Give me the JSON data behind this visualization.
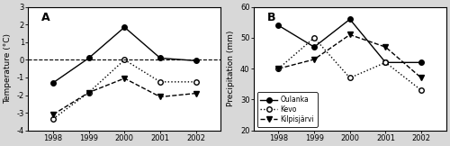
{
  "years": [
    1998,
    1999,
    2000,
    2001,
    2002
  ],
  "temp_oulanka": [
    -1.3,
    0.1,
    1.85,
    0.1,
    -0.05
  ],
  "temp_kevo": [
    -3.35,
    -1.85,
    0.0,
    -1.25,
    -1.25
  ],
  "temp_kilpisjarvi": [
    -3.1,
    -1.85,
    -1.05,
    -2.1,
    -1.9
  ],
  "precip_oulanka": [
    54,
    47,
    56,
    42,
    42
  ],
  "precip_kevo": [
    40,
    50,
    37,
    42,
    33
  ],
  "precip_kilpisjarvi": [
    40,
    43,
    51,
    47,
    37
  ],
  "temp_ylim": [
    -4,
    3
  ],
  "temp_yticks": [
    -4,
    -3,
    -2,
    -1,
    0,
    1,
    2,
    3
  ],
  "precip_ylim": [
    20,
    60
  ],
  "precip_yticks": [
    20,
    30,
    40,
    50,
    60
  ],
  "label_A": "A",
  "label_B": "B",
  "ylabel_temp": "Temperature (°C)",
  "ylabel_precip": "Precipitation (mm)",
  "legend_oulanka": "Oulanka",
  "legend_kevo": "Kevo",
  "legend_kilpisjarvi": "Kilpisjärvi",
  "line_color": "black",
  "bg_color": "#d8d8d8",
  "panel_bg": "white"
}
